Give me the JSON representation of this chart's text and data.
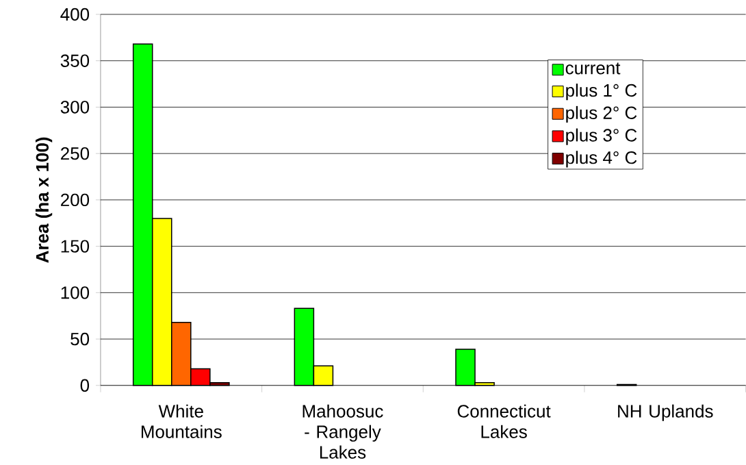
{
  "chart_data": {
    "type": "bar",
    "ylabel": "Area (ha x 100)",
    "categories": [
      "White Mountains",
      "Mahoosuc - Rangely Lakes",
      "Connecticut Lakes",
      "NH Uplands"
    ],
    "series": [
      {
        "name": "current",
        "color": "#00ff00",
        "values": [
          368,
          83,
          39,
          1
        ]
      },
      {
        "name": "plus 1° C",
        "color": "#ffff00",
        "values": [
          180,
          21,
          3,
          null
        ]
      },
      {
        "name": "plus 2° C",
        "color": "#ff6600",
        "values": [
          68,
          null,
          null,
          null
        ]
      },
      {
        "name": "plus 3° C",
        "color": "#ff0000",
        "values": [
          18,
          null,
          null,
          null
        ]
      },
      {
        "name": "plus 4° C",
        "color": "#800000",
        "values": [
          3,
          null,
          null,
          null
        ]
      }
    ],
    "ylim": [
      0,
      400
    ],
    "yticks": [
      0,
      50,
      100,
      150,
      200,
      250,
      300,
      350,
      400
    ],
    "grid": "y",
    "legend": "top right"
  }
}
